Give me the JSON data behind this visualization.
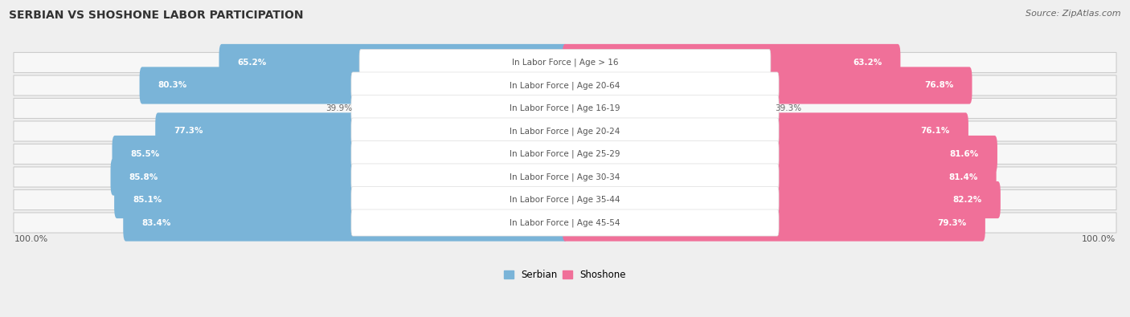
{
  "title": "SERBIAN VS SHOSHONE LABOR PARTICIPATION",
  "source": "Source: ZipAtlas.com",
  "categories": [
    "In Labor Force | Age > 16",
    "In Labor Force | Age 20-64",
    "In Labor Force | Age 16-19",
    "In Labor Force | Age 20-24",
    "In Labor Force | Age 25-29",
    "In Labor Force | Age 30-34",
    "In Labor Force | Age 35-44",
    "In Labor Force | Age 45-54"
  ],
  "serbian_values": [
    65.2,
    80.3,
    39.9,
    77.3,
    85.5,
    85.8,
    85.1,
    83.4
  ],
  "shoshone_values": [
    63.2,
    76.8,
    39.3,
    76.1,
    81.6,
    81.4,
    82.2,
    79.3
  ],
  "serbian_color": "#7ab4d8",
  "serbian_color_light": "#c5dced",
  "shoshone_color": "#f07099",
  "shoshone_color_light": "#f8b8cb",
  "bg_color": "#efefef",
  "row_bg": "#e3e3e3",
  "row_bg_white": "#f7f7f7",
  "center_box_color": "#ffffff",
  "center_text_color": "#555555",
  "max_value": 100.0,
  "bar_height": 0.62,
  "legend_labels": [
    "Serbian",
    "Shoshone"
  ],
  "low_threshold": 50
}
